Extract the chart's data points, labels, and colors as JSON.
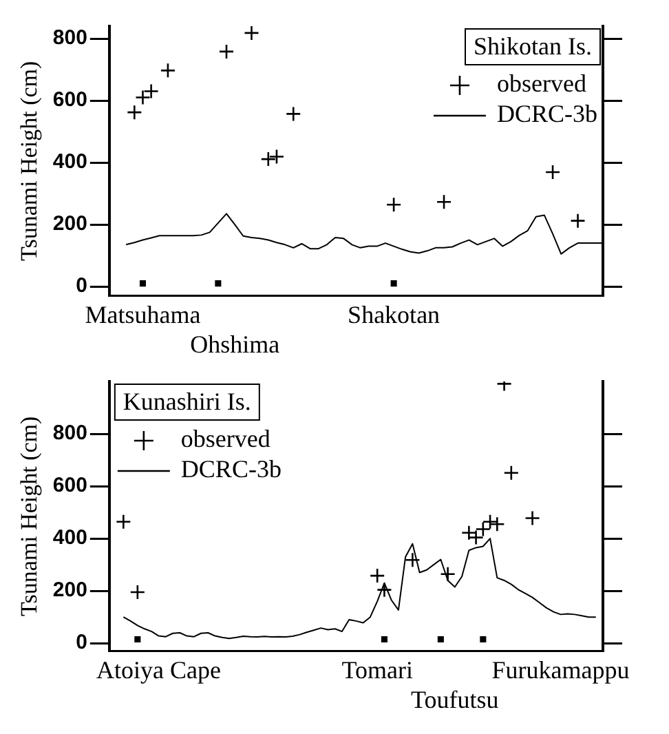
{
  "chart_data": [
    {
      "type": "line",
      "ylabel": "Tsunami Height (cm)",
      "legend_title": "Shikotan Is.",
      "legend": "top right",
      "grid": false,
      "categories": [
        null,
        null,
        null,
        null,
        "Matsuhama",
        null,
        null,
        null,
        null,
        null,
        null,
        null,
        null,
        null,
        null,
        "Ohshima",
        null,
        null,
        null,
        null,
        null,
        null,
        null,
        null,
        null,
        null,
        null,
        null,
        null,
        null,
        null,
        null,
        null,
        null,
        "Shakotan",
        null,
        null,
        null,
        null,
        null,
        null,
        null,
        null,
        null,
        null,
        null,
        null,
        null,
        null,
        null,
        null,
        null,
        null,
        null,
        null,
        null,
        null,
        null,
        null,
        null
      ],
      "ylim": [
        -30,
        840
      ],
      "yticks": [
        0,
        200,
        400,
        600,
        800
      ],
      "series": [
        {
          "name": "observed",
          "type": "scatter",
          "marker": "cross",
          "color": "#000000",
          "values": [
            null,
            null,
            null,
            562,
            610,
            630,
            null,
            697,
            null,
            null,
            null,
            null,
            null,
            null,
            758,
            null,
            null,
            818,
            null,
            411,
            419,
            null,
            557,
            null,
            null,
            null,
            null,
            null,
            null,
            null,
            null,
            null,
            null,
            null,
            264,
            null,
            null,
            null,
            null,
            null,
            273,
            null,
            null,
            null,
            null,
            null,
            null,
            null,
            null,
            null,
            null,
            null,
            null,
            369,
            null,
            null,
            212,
            null,
            null,
            null
          ]
        },
        {
          "name": "DCRC-3b",
          "type": "line",
          "marker": "none",
          "line_style": "solid",
          "color": "#000000",
          "values": [
            null,
            null,
            135,
            142,
            150,
            157,
            164,
            164,
            164,
            164,
            164,
            166,
            175,
            205,
            235,
            200,
            163,
            158,
            155,
            150,
            142,
            135,
            125,
            138,
            122,
            122,
            135,
            158,
            155,
            135,
            125,
            130,
            130,
            140,
            130,
            120,
            112,
            108,
            115,
            125,
            125,
            128,
            140,
            150,
            135,
            145,
            155,
            130,
            145,
            165,
            180,
            225,
            230,
            170,
            105,
            125,
            140,
            140,
            140,
            140
          ]
        },
        {
          "type": "scatter",
          "marker": "square",
          "color": "#000000",
          "values": [
            null,
            null,
            null,
            null,
            10,
            null,
            null,
            null,
            null,
            null,
            null,
            null,
            null,
            10,
            null,
            null,
            null,
            null,
            null,
            null,
            null,
            null,
            null,
            null,
            null,
            null,
            null,
            null,
            null,
            null,
            null,
            null,
            null,
            null,
            10,
            null,
            null,
            null,
            null,
            null,
            null,
            null,
            null,
            null,
            null,
            null,
            null,
            null,
            null,
            null,
            null,
            null,
            null,
            null,
            null,
            null,
            null,
            null,
            null,
            null
          ]
        }
      ]
    },
    {
      "type": "line",
      "ylabel": "Tsunami Height (cm)",
      "legend_title": "Kunashiri Is.",
      "legend": "top left",
      "grid": false,
      "categories": [
        null,
        null,
        null,
        null,
        null,
        null,
        null,
        "Atoiya Cape",
        null,
        null,
        null,
        null,
        null,
        null,
        null,
        null,
        null,
        null,
        null,
        null,
        null,
        null,
        null,
        null,
        null,
        null,
        null,
        null,
        null,
        null,
        null,
        null,
        null,
        null,
        null,
        null,
        null,
        null,
        "Tomari",
        null,
        null,
        null,
        null,
        null,
        null,
        null,
        null,
        null,
        null,
        "Toufutsu",
        null,
        null,
        null,
        null,
        null,
        null,
        null,
        null,
        null,
        null,
        null,
        null,
        null,
        null,
        "Furukamappu",
        null,
        null,
        null,
        null,
        null,
        null
      ],
      "ylim": [
        -30,
        1000
      ],
      "yticks": [
        0,
        200,
        400,
        600,
        800
      ],
      "series": [
        {
          "name": "observed",
          "type": "scatter",
          "marker": "cross",
          "color": "#000000",
          "values": [
            null,
            null,
            464,
            null,
            195,
            null,
            null,
            null,
            null,
            null,
            null,
            null,
            null,
            null,
            null,
            null,
            null,
            null,
            null,
            null,
            null,
            null,
            null,
            null,
            null,
            null,
            null,
            null,
            null,
            null,
            null,
            null,
            null,
            null,
            null,
            null,
            null,
            null,
            258,
            204,
            null,
            null,
            null,
            318,
            null,
            null,
            null,
            null,
            264,
            null,
            null,
            422,
            404,
            436,
            464,
            455,
            991,
            651,
            null,
            null,
            478,
            null,
            null,
            null,
            null,
            null,
            null,
            null,
            null,
            null,
            null
          ]
        },
        {
          "name": "DCRC-3b",
          "type": "line",
          "marker": "none",
          "line_style": "solid",
          "color": "#000000",
          "values": [
            null,
            null,
            100,
            85,
            68,
            55,
            45,
            28,
            25,
            38,
            40,
            28,
            25,
            38,
            40,
            28,
            22,
            18,
            22,
            27,
            25,
            24,
            26,
            24,
            25,
            24,
            27,
            33,
            42,
            50,
            58,
            52,
            55,
            45,
            90,
            85,
            78,
            100,
            160,
            230,
            165,
            127,
            330,
            380,
            270,
            280,
            300,
            320,
            240,
            215,
            255,
            355,
            365,
            370,
            400,
            250,
            240,
            225,
            205,
            190,
            175,
            155,
            135,
            120,
            110,
            112,
            110,
            105,
            100,
            100,
            null
          ]
        },
        {
          "type": "scatter",
          "marker": "square",
          "color": "#000000",
          "values": [
            null,
            null,
            null,
            null,
            15,
            null,
            null,
            null,
            null,
            null,
            null,
            null,
            null,
            null,
            null,
            null,
            null,
            null,
            null,
            null,
            null,
            null,
            null,
            null,
            null,
            null,
            null,
            null,
            null,
            null,
            null,
            null,
            null,
            null,
            null,
            null,
            null,
            null,
            null,
            15,
            null,
            null,
            null,
            null,
            null,
            null,
            null,
            15,
            null,
            null,
            null,
            null,
            null,
            15,
            null,
            null,
            null,
            null,
            null,
            null,
            null,
            null,
            null,
            null,
            null,
            null,
            null,
            null,
            null,
            null,
            null
          ]
        }
      ]
    }
  ]
}
